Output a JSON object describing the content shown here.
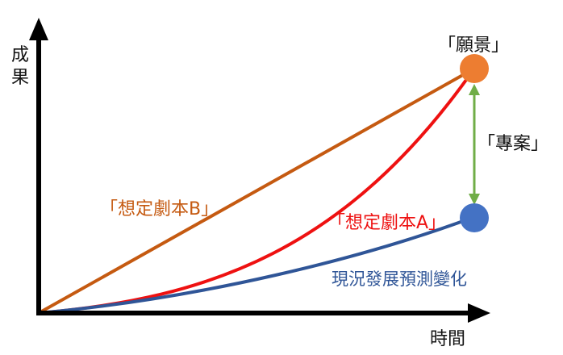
{
  "y_axis_label": [
    "成",
    "果"
  ],
  "x_axis_label": "時間",
  "vision_label": "「願景」",
  "project_label": "「專案」",
  "scenario_b_label": "「想定劇本B」",
  "scenario_a_label": "「想定劇本A」",
  "current_label": "現況發展預測變化",
  "colors": {
    "axis": "#000000",
    "scenario_b": "#c55a11",
    "scenario_a": "#ee1111",
    "current": "#2f5597",
    "current_text": "#2f5597",
    "vision_dot": "#ed7d31",
    "current_dot": "#4472c4",
    "gap_arrow": "#70ad47",
    "scenario_b_text": "#c55a11",
    "scenario_a_text": "#ee1111"
  }
}
